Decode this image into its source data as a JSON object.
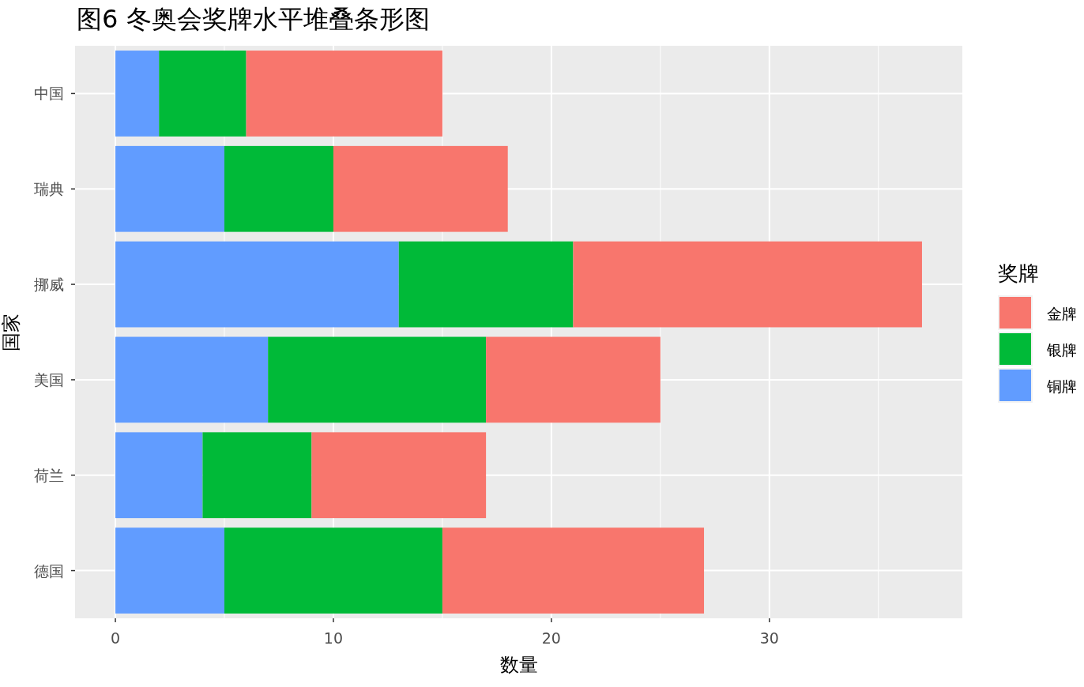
{
  "chart_data": {
    "type": "bar",
    "orientation": "horizontal",
    "stacked": true,
    "title": "图6 冬奥会奖牌水平堆叠条形图",
    "xlabel": "数量",
    "ylabel": "国家",
    "legend_title": "奖牌",
    "categories": [
      "中国",
      "瑞典",
      "挪威",
      "美国",
      "荷兰",
      "德国"
    ],
    "series": [
      {
        "name": "铜牌",
        "color": "#619cff",
        "values": [
          2,
          5,
          13,
          7,
          4,
          5
        ]
      },
      {
        "name": "银牌",
        "color": "#00ba38",
        "values": [
          4,
          5,
          8,
          10,
          5,
          10
        ]
      },
      {
        "name": "金牌",
        "color": "#f8766d",
        "values": [
          9,
          8,
          16,
          8,
          8,
          12
        ]
      }
    ],
    "xlim": [
      -1.85,
      38.85
    ],
    "xticks": [
      0,
      10,
      20,
      30
    ],
    "grid": true,
    "legend": "right"
  }
}
